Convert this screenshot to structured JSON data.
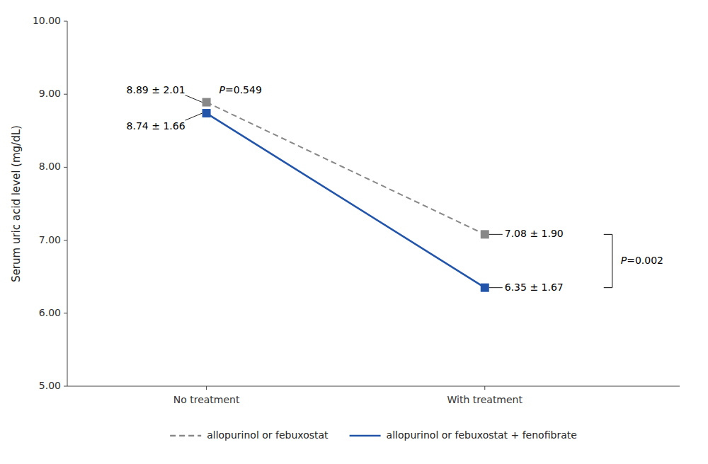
{
  "chart_data": {
    "type": "line",
    "categories": [
      "No treatment",
      "With treatment"
    ],
    "series": [
      {
        "name": "allopurinol or febuxostat",
        "color": "#888888",
        "values": [
          8.89,
          7.08
        ],
        "line_style": "dashed",
        "marker": "square"
      },
      {
        "name": "allopurinol or febuxostat + fenofibrate",
        "color": "#2255AA",
        "values": [
          8.74,
          6.35
        ],
        "line_style": "solid",
        "marker": "square"
      }
    ],
    "y_label": "Serum uric acid level (mg/dL)",
    "ylim": [
      5.0,
      10.0
    ],
    "yticks": [
      {
        "value": 5.0,
        "label": "5.00"
      },
      {
        "value": 6.0,
        "label": "6.00"
      },
      {
        "value": 7.0,
        "label": "7.00"
      },
      {
        "value": 8.0,
        "label": "8.00"
      },
      {
        "value": 9.0,
        "label": "9.00"
      },
      {
        "value": 10.0,
        "label": "10.00"
      }
    ],
    "annotations": [
      "8.89 ± 2.01",
      "8.74 ± 1.66",
      "7.08 ± 1.90",
      "6.35 ± 1.67",
      "P=0.549",
      "P=0.002"
    ],
    "grid": false,
    "legend": "bottom"
  }
}
